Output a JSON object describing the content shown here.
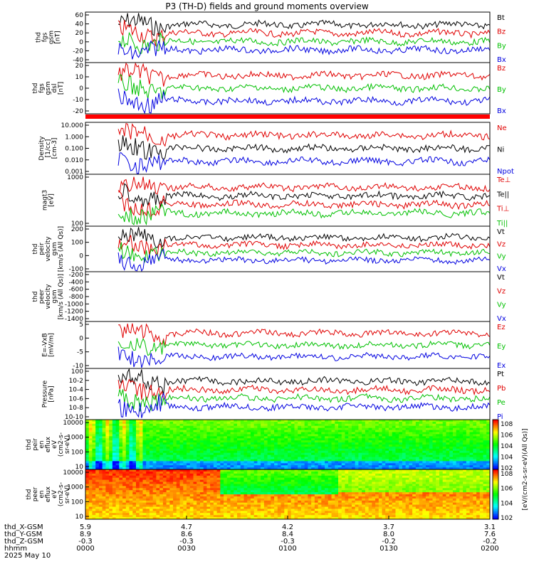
{
  "chart_data": {
    "type": "line",
    "title": "P3 (TH-D) fields and ground moments overview",
    "time_ticks": [
      "0000",
      "0030",
      "0100",
      "0130",
      "0200"
    ],
    "ephemeris": {
      "rows": [
        {
          "label": "thd_X-GSM",
          "values": [
            "5.9",
            "4.7",
            "4.2",
            "3.7",
            "3.1"
          ]
        },
        {
          "label": "thd_Y-GSM",
          "values": [
            "8.9",
            "8.6",
            "8.4",
            "8.0",
            "7.6"
          ]
        },
        {
          "label": "thd_Z-GSM",
          "values": [
            "-0.3",
            "-0.3",
            "-0.3",
            "-0.2",
            "-0.2"
          ]
        },
        {
          "label": "hhmm",
          "values": [
            "0000",
            "0030",
            "0100",
            "0130",
            "0200"
          ]
        }
      ],
      "date": "2025 May 10"
    },
    "colorbar_label": "[eV/(cm^2-s-sr-eV)(All Qs)]",
    "panels": [
      {
        "id": "fgs-gsm",
        "ylabel": [
          "thd",
          "fgs",
          "gsm",
          "[nT]"
        ],
        "yticks": [
          "60",
          "40",
          "20",
          "0",
          "-20",
          "-40"
        ],
        "legend": [
          {
            "text": "Bt",
            "color": "#000000"
          },
          {
            "text": "Bz",
            "color": "#e00000"
          },
          {
            "text": "By",
            "color": "#00c000"
          },
          {
            "text": "Bx",
            "color": "#0000e0"
          }
        ]
      },
      {
        "id": "fgs-dsl",
        "ylabel": [
          "thd",
          "fgs",
          "gsm",
          "dsl",
          "[nT]"
        ],
        "yticks": [
          "20",
          "10",
          "0",
          "-10",
          "-20"
        ],
        "legend": [
          {
            "text": "Bz",
            "color": "#e00000"
          },
          {
            "text": "By",
            "color": "#00c000"
          },
          {
            "text": "Bx",
            "color": "#0000e0"
          }
        ]
      },
      {
        "id": "density",
        "ylabel": [
          "Density",
          "[1/cc]",
          "[cm-3]"
        ],
        "yticks": [
          "10.000",
          "1.000",
          "0.100",
          "0.010",
          "0.001"
        ],
        "legend": [
          {
            "text": "Ne",
            "color": "#e00000"
          },
          {
            "text": "Ni",
            "color": "#000000"
          },
          {
            "text": "Npot",
            "color": "#0000e0"
          }
        ]
      },
      {
        "id": "temperature",
        "ylabel": [
          "magt3",
          "[eV]"
        ],
        "yticks": [
          "1000",
          "100"
        ],
        "legend": [
          {
            "text": "Te⊥",
            "color": "#e00000"
          },
          {
            "text": "Te||",
            "color": "#000000"
          },
          {
            "text": "Ti⊥",
            "color": "#e00000"
          },
          {
            "text": "Ti||",
            "color": "#00c000"
          }
        ]
      },
      {
        "id": "peir-velocity",
        "ylabel": [
          "thd",
          "peir",
          "velocity",
          "gsm",
          "[km/s (All Qs)]"
        ],
        "yticks": [
          "200",
          "100",
          "0",
          "-100"
        ],
        "legend": [
          {
            "text": "Vt",
            "color": "#000000"
          },
          {
            "text": "Vz",
            "color": "#e00000"
          },
          {
            "text": "Vy",
            "color": "#00c000"
          },
          {
            "text": "Vx",
            "color": "#0000e0"
          }
        ]
      },
      {
        "id": "peer-velocity",
        "ylabel": [
          "thd",
          "peer",
          "velocity",
          "gsm",
          "[km/s (All Qs)]"
        ],
        "yticks": [
          "-200",
          "-400",
          "-600",
          "-800",
          "-1000",
          "-1200",
          "-1400"
        ],
        "legend": [
          {
            "text": "Vt",
            "color": "#000000"
          },
          {
            "text": "Vz",
            "color": "#e00000"
          },
          {
            "text": "Vy",
            "color": "#00c000"
          },
          {
            "text": "Vx",
            "color": "#0000e0"
          }
        ]
      },
      {
        "id": "efield",
        "ylabel": [
          "E=-VxB",
          "[mV/m]"
        ],
        "yticks": [
          "5",
          "0",
          "-5",
          "-10"
        ],
        "legend": [
          {
            "text": "Ez",
            "color": "#e00000"
          },
          {
            "text": "Ey",
            "color": "#00c000"
          },
          {
            "text": "Ex",
            "color": "#0000e0"
          }
        ]
      },
      {
        "id": "pressure",
        "ylabel": [
          "Pressure",
          "[nPa]"
        ],
        "yticks": [
          "10^0",
          "10^-2",
          "10^-4",
          "10^-6",
          "10^-8",
          "10^-10"
        ],
        "legend": [
          {
            "text": "Pt",
            "color": "#000000"
          },
          {
            "text": "Pb",
            "color": "#e00000"
          },
          {
            "text": "Pe",
            "color": "#00c000"
          },
          {
            "text": "Pi",
            "color": "#0000e0"
          }
        ]
      },
      {
        "id": "peir-spec",
        "ylabel": [
          "thd",
          "peir",
          "en",
          "eflux",
          "eV",
          "(cm^2-s-",
          "sr-eV)"
        ],
        "yticks": [
          "10000",
          "1000",
          "100",
          "10"
        ],
        "cbticks": [
          "10^8",
          "10^6",
          "10^4",
          "10^4",
          "10^2"
        ]
      },
      {
        "id": "peer-spec",
        "ylabel": [
          "thd",
          "peer",
          "en",
          "eflux",
          "eV",
          "(cm^2-s-",
          "sr-eV)"
        ],
        "yticks": [
          "10000",
          "1000",
          "100",
          "10"
        ],
        "cbticks": [
          "10^8",
          "10^6",
          "10^4",
          "10^2"
        ]
      }
    ]
  }
}
